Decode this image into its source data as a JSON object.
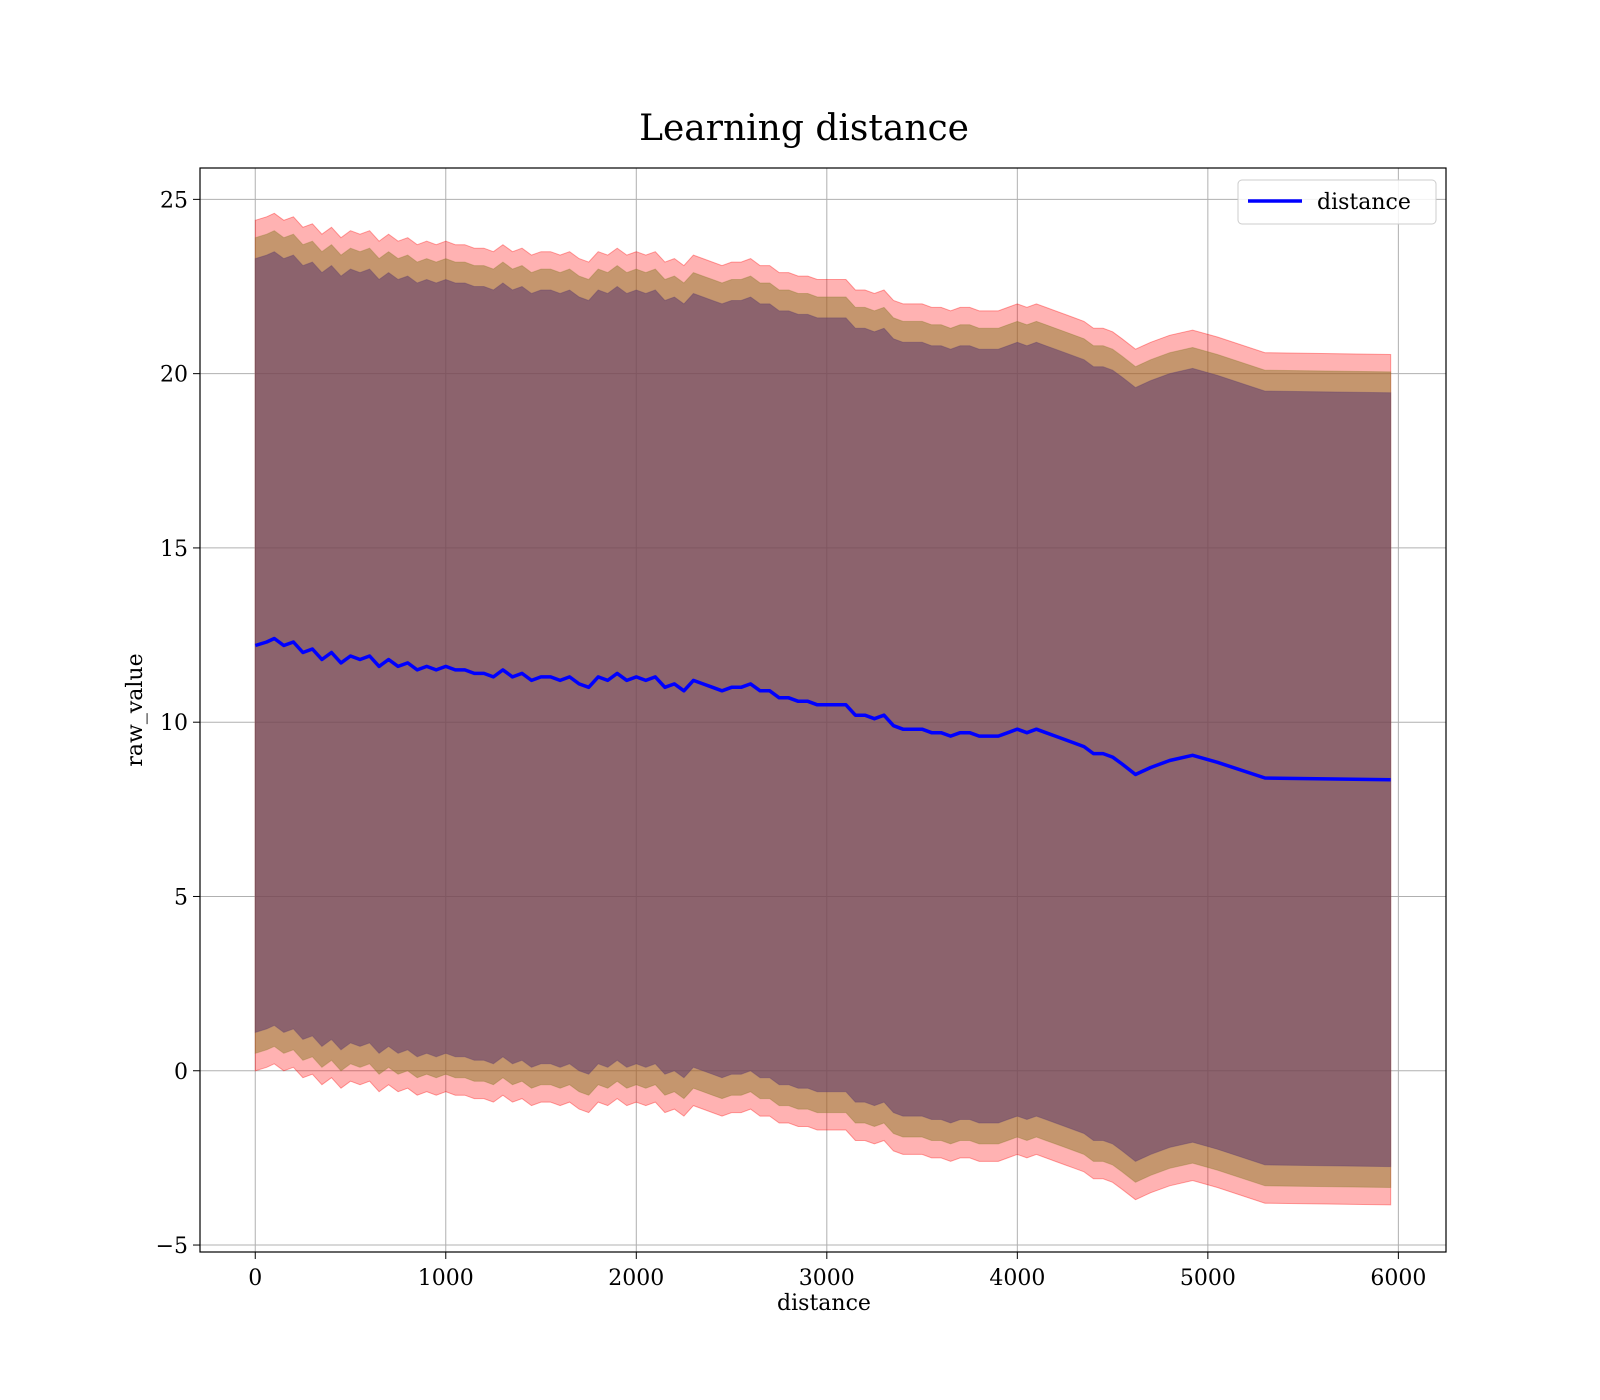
{
  "chart_data": {
    "type": "line",
    "title": "Learning distance",
    "xlabel": "distance",
    "ylabel": "raw_value",
    "xlim": [
      -290,
      6250
    ],
    "ylim": [
      -5.2,
      25.9
    ],
    "xticks": [
      0,
      1000,
      2000,
      3000,
      4000,
      5000,
      6000
    ],
    "xtick_labels": [
      "0",
      "1000",
      "2000",
      "3000",
      "4000",
      "5000",
      "6000"
    ],
    "yticks": [
      -5,
      0,
      5,
      10,
      15,
      20,
      25
    ],
    "ytick_labels": [
      "−5",
      "0",
      "5",
      "10",
      "15",
      "20",
      "25"
    ],
    "grid": true,
    "legend": {
      "placement": "upper right",
      "entries": [
        "distance"
      ]
    },
    "colors": {
      "line": "#0000ff",
      "band_outer": "#ff0000",
      "band_middle": "#8c7a2a",
      "band_inner": "#5c3b6e",
      "grid": "#b0b0b0",
      "axes": "#000000"
    },
    "series": [
      {
        "name": "distance",
        "x": [
          0,
          60,
          100,
          150,
          200,
          250,
          300,
          350,
          400,
          450,
          500,
          550,
          600,
          650,
          700,
          750,
          800,
          850,
          900,
          950,
          1000,
          1050,
          1100,
          1150,
          1200,
          1250,
          1300,
          1350,
          1400,
          1450,
          1500,
          1550,
          1600,
          1650,
          1700,
          1750,
          1800,
          1850,
          1900,
          1950,
          2000,
          2050,
          2100,
          2150,
          2200,
          2250,
          2300,
          2350,
          2400,
          2450,
          2500,
          2550,
          2600,
          2650,
          2700,
          2750,
          2800,
          2850,
          2900,
          2950,
          3000,
          3050,
          3100,
          3150,
          3200,
          3250,
          3300,
          3350,
          3400,
          3450,
          3500,
          3550,
          3600,
          3650,
          3700,
          3750,
          3800,
          3850,
          3900,
          3950,
          4000,
          4050,
          4100,
          4150,
          4200,
          4250,
          4300,
          4350,
          4400,
          4450,
          4500,
          4550,
          4620,
          4700,
          4800,
          4920,
          5050,
          5300,
          5960
        ],
        "values": [
          12.2,
          12.3,
          12.4,
          12.2,
          12.3,
          12.0,
          12.1,
          11.8,
          12.0,
          11.7,
          11.9,
          11.8,
          11.9,
          11.6,
          11.8,
          11.6,
          11.7,
          11.5,
          11.6,
          11.5,
          11.6,
          11.5,
          11.5,
          11.4,
          11.4,
          11.3,
          11.5,
          11.3,
          11.4,
          11.2,
          11.3,
          11.3,
          11.2,
          11.3,
          11.1,
          11.0,
          11.3,
          11.2,
          11.4,
          11.2,
          11.3,
          11.2,
          11.3,
          11.0,
          11.1,
          10.9,
          11.2,
          11.1,
          11.0,
          10.9,
          11.0,
          11.0,
          11.1,
          10.9,
          10.9,
          10.7,
          10.7,
          10.6,
          10.6,
          10.5,
          10.5,
          10.5,
          10.5,
          10.2,
          10.2,
          10.1,
          10.2,
          9.9,
          9.8,
          9.8,
          9.8,
          9.7,
          9.7,
          9.6,
          9.7,
          9.7,
          9.6,
          9.6,
          9.6,
          9.7,
          9.8,
          9.7,
          9.8,
          9.7,
          9.6,
          9.5,
          9.4,
          9.3,
          9.1,
          9.1,
          9.0,
          8.8,
          8.5,
          8.7,
          8.9,
          9.05,
          8.85,
          8.4,
          8.35
        ]
      }
    ],
    "bands": [
      {
        "role": "outer",
        "offsets_upper": 12.2,
        "offsets_lower": 12.2
      },
      {
        "role": "middle",
        "offsets_upper": 11.7,
        "offsets_lower": 11.7
      },
      {
        "role": "inner",
        "offsets_upper": 11.1,
        "offsets_lower": 11.1
      }
    ]
  }
}
